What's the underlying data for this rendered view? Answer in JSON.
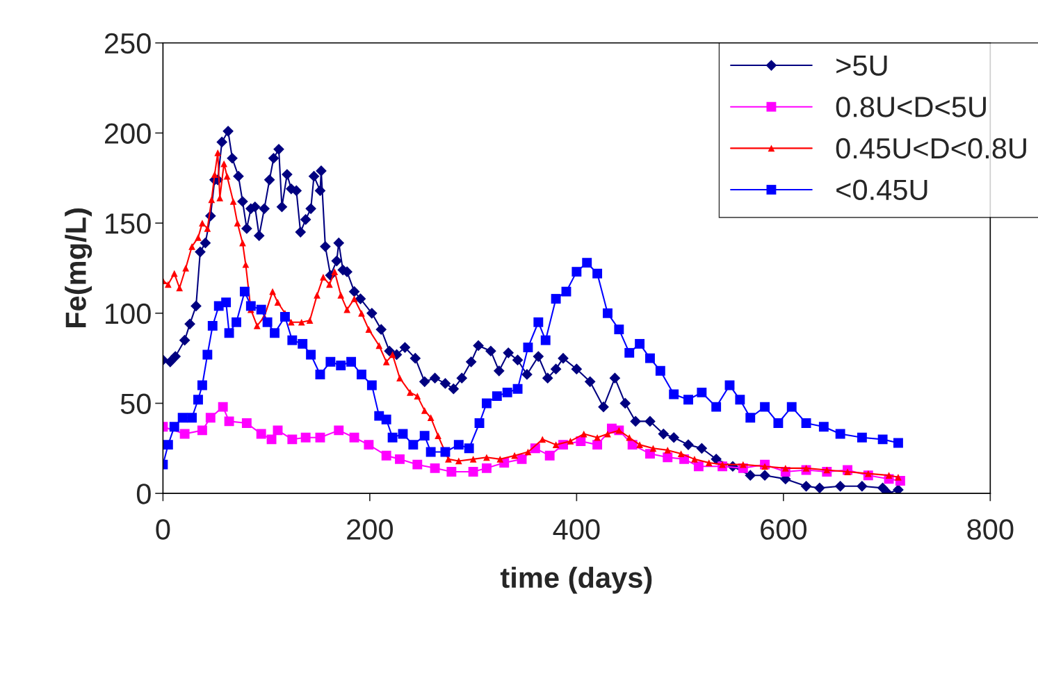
{
  "chart_data": {
    "type": "line",
    "xlabel": "time (days)",
    "ylabel": "Fe(mg/L)",
    "xlim": [
      0,
      800
    ],
    "xticks": [
      0,
      200,
      400,
      600,
      800
    ],
    "ylim": [
      0,
      250
    ],
    "yticks": [
      0,
      50,
      100,
      150,
      200,
      250
    ],
    "grid": false,
    "legend": "top right",
    "line_style": "solid",
    "series": [
      {
        "name": ">5U",
        "color": "#000080",
        "marker": "diamond",
        "x": [
          0,
          7,
          12,
          21,
          26,
          32,
          36,
          41,
          46,
          50,
          53,
          57,
          63,
          67,
          73,
          77,
          81,
          85,
          89,
          93,
          98,
          103,
          107,
          112,
          115,
          120,
          124,
          129,
          133,
          138,
          143,
          146,
          152,
          153,
          157,
          162,
          168,
          170,
          174,
          178,
          185,
          191,
          202,
          211,
          219,
          226,
          234,
          244,
          253,
          263,
          273,
          281,
          289,
          298,
          305,
          317,
          325,
          334,
          343,
          352,
          363,
          372,
          380,
          387,
          400,
          413,
          426,
          437,
          447,
          457,
          471,
          484,
          494,
          508,
          521,
          535,
          551,
          568,
          582,
          602,
          622,
          635,
          655,
          676,
          696,
          701,
          711
        ],
        "values": [
          74,
          73,
          76,
          85,
          94,
          104,
          134,
          139,
          154,
          174,
          174,
          195,
          201,
          186,
          176,
          162,
          147,
          158,
          159,
          143,
          158,
          174,
          186,
          191,
          159,
          177,
          169,
          168,
          145,
          152,
          158,
          176,
          168,
          179,
          137,
          121,
          129,
          139,
          124,
          123,
          112,
          108,
          100,
          91,
          79,
          77,
          81,
          75,
          62,
          64,
          61,
          58,
          64,
          73,
          82,
          79,
          68,
          78,
          74,
          66,
          76,
          64,
          69,
          75,
          69,
          62,
          48,
          64,
          50,
          40,
          40,
          33,
          31,
          27,
          25,
          19,
          15,
          10,
          10,
          8,
          4,
          3,
          4,
          4,
          3,
          0,
          2
        ]
      },
      {
        "name": "0.8U<D<5U",
        "color": "#ff00ff",
        "marker": "square",
        "x": [
          0,
          21,
          38,
          46,
          58,
          64,
          81,
          95,
          105,
          111,
          125,
          138,
          152,
          170,
          185,
          199,
          216,
          229,
          246,
          263,
          279,
          300,
          313,
          330,
          347,
          360,
          374,
          387,
          404,
          420,
          434,
          441,
          454,
          471,
          488,
          504,
          518,
          541,
          561,
          582,
          602,
          622,
          642,
          662,
          682,
          702,
          713
        ],
        "values": [
          37,
          33,
          35,
          42,
          48,
          40,
          39,
          33,
          30,
          35,
          30,
          31,
          31,
          35,
          31,
          27,
          21,
          19,
          16,
          14,
          12,
          12,
          14,
          17,
          19,
          25,
          21,
          27,
          29,
          27,
          36,
          35,
          27,
          22,
          20,
          19,
          15,
          15,
          14,
          16,
          12,
          13,
          12,
          13,
          10,
          8,
          7
        ]
      },
      {
        "name": "0.45U<D<0.8U",
        "color": "#ff0000",
        "marker": "triangle",
        "x": [
          0,
          5,
          11,
          16,
          22,
          28,
          34,
          38,
          43,
          47,
          50,
          53,
          55,
          59,
          62,
          68,
          72,
          77,
          80,
          85,
          91,
          98,
          106,
          111,
          118,
          124,
          134,
          142,
          149,
          155,
          161,
          166,
          172,
          178,
          185,
          192,
          199,
          209,
          216,
          222,
          229,
          239,
          246,
          253,
          259,
          266,
          276,
          286,
          300,
          313,
          326,
          340,
          353,
          367,
          380,
          394,
          407,
          420,
          430,
          441,
          451,
          461,
          474,
          488,
          501,
          514,
          528,
          541,
          561,
          582,
          602,
          622,
          642,
          662,
          682,
          702,
          711
        ],
        "values": [
          118,
          116,
          122,
          114,
          125,
          137,
          142,
          150,
          147,
          163,
          177,
          189,
          164,
          183,
          176,
          162,
          150,
          139,
          127,
          102,
          93,
          98,
          112,
          106,
          100,
          95,
          95,
          96,
          110,
          120,
          116,
          123,
          110,
          102,
          108,
          100,
          91,
          82,
          73,
          77,
          64,
          56,
          54,
          46,
          42,
          32,
          19,
          18,
          19,
          20,
          19,
          21,
          23,
          30,
          27,
          29,
          33,
          31,
          33,
          35,
          31,
          27,
          25,
          24,
          22,
          19,
          17,
          16,
          16,
          15,
          14,
          14,
          13,
          12,
          11,
          10,
          9
        ]
      },
      {
        "name": "<0.45U",
        "color": "#0000ff",
        "marker": "square",
        "x": [
          0,
          5,
          11,
          19,
          28,
          34,
          38,
          43,
          48,
          54,
          61,
          64,
          71,
          79,
          85,
          95,
          101,
          108,
          118,
          125,
          135,
          143,
          152,
          162,
          172,
          182,
          192,
          202,
          209,
          216,
          222,
          232,
          242,
          253,
          259,
          273,
          286,
          296,
          306,
          313,
          323,
          333,
          343,
          353,
          363,
          370,
          380,
          390,
          400,
          410,
          420,
          430,
          441,
          451,
          461,
          471,
          481,
          494,
          508,
          521,
          535,
          548,
          558,
          568,
          582,
          595,
          608,
          622,
          639,
          655,
          676,
          696,
          711
        ],
        "values": [
          16,
          27,
          37,
          42,
          42,
          52,
          60,
          77,
          93,
          104,
          106,
          89,
          95,
          112,
          104,
          102,
          95,
          89,
          98,
          85,
          83,
          77,
          66,
          73,
          71,
          73,
          66,
          60,
          43,
          41,
          31,
          33,
          27,
          32,
          23,
          23,
          27,
          25,
          39,
          50,
          54,
          56,
          58,
          81,
          95,
          85,
          108,
          112,
          123,
          128,
          122,
          100,
          91,
          78,
          83,
          75,
          68,
          55,
          52,
          56,
          48,
          60,
          52,
          42,
          48,
          39,
          48,
          39,
          37,
          33,
          31,
          30,
          28
        ]
      }
    ]
  }
}
